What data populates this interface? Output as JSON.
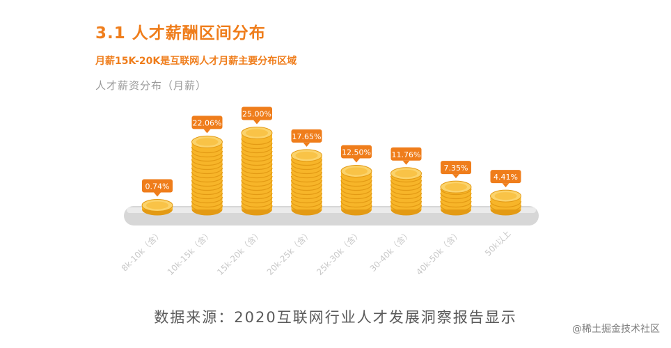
{
  "header": {
    "section_title": "3.1 人才薪酬区间分布",
    "subtitle": "月薪15K-20K是互联网人才月薪主要分布区域"
  },
  "chart_data": {
    "type": "bar",
    "title": "人才薪资分布（月薪）",
    "categories": [
      "8k-10k（含）",
      "10k-15k（含）",
      "15k-20k（含）",
      "20k-25k（含）",
      "25k-30k（含）",
      "30-40k（含）",
      "40k-50k（含）",
      "50k以上"
    ],
    "values": [
      0.74,
      22.06,
      25.0,
      17.65,
      12.5,
      11.76,
      7.35,
      4.41
    ],
    "data_labels": [
      "0.74%",
      "22.06%",
      "25.00%",
      "17.65%",
      "12.50%",
      "11.76%",
      "7.35%",
      "4.41%"
    ],
    "unit": "%",
    "colors": {
      "coin": "#f7b529",
      "coin_edge": "#e39a14",
      "label_bg": "#ef7d1b",
      "label_text": "#ffffff",
      "platform": "#d7d7d7",
      "axis_text": "#c8c8c8"
    }
  },
  "footer": {
    "source": "数据来源：2020互联网行业人才发展洞察报告显示",
    "watermark": "@稀土掘金技术社区"
  }
}
